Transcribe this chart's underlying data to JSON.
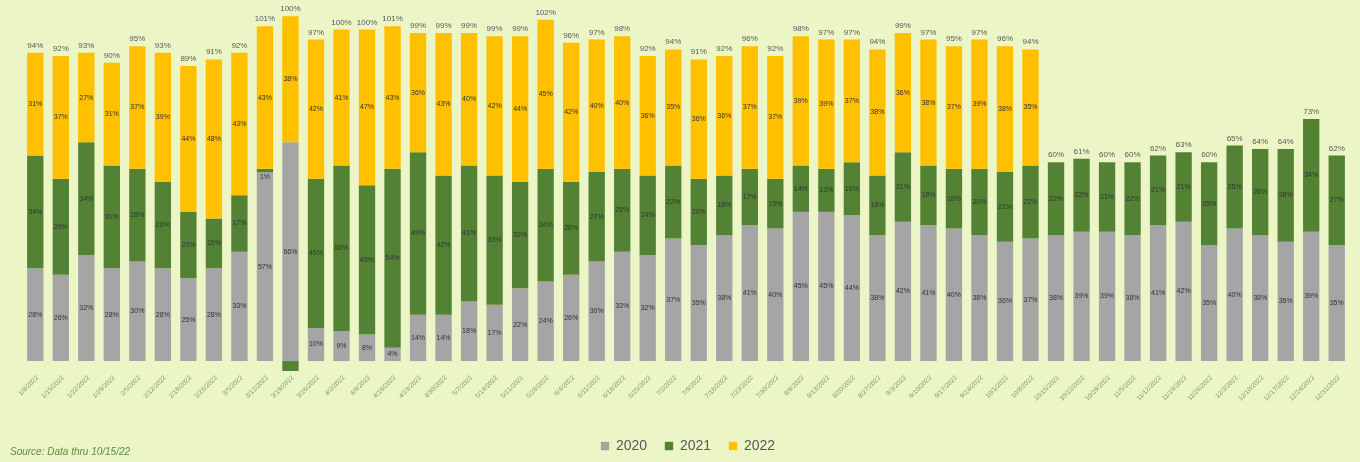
{
  "chart_data": {
    "type": "bar",
    "stacked": true,
    "categories": [
      "1/8/2022",
      "1/15/2022",
      "1/22/2022",
      "1/29/2022",
      "2/5/2022",
      "2/12/2022",
      "2/19/2022",
      "2/26/2022",
      "3/5/2022",
      "3/12/2022",
      "3/19/2022",
      "3/26/2022",
      "4/2/2022",
      "4/9/2022",
      "4/16/2022",
      "4/23/2022",
      "4/30/2022",
      "5/7/2022",
      "5/14/2022",
      "5/21/2022",
      "5/28/2022",
      "6/4/2022",
      "6/11/2022",
      "6/18/2022",
      "6/25/2022",
      "7/2/2022",
      "7/9/2022",
      "7/16/2022",
      "7/23/2022",
      "7/30/2022",
      "8/6/2022",
      "8/13/2022",
      "8/20/2022",
      "8/27/2022",
      "9/3/2022",
      "9/10/2022",
      "9/17/2022",
      "9/24/2022",
      "10/1/2022",
      "10/8/2022",
      "10/15/2022",
      "10/22/2022",
      "10/29/2022",
      "11/5/2022",
      "11/12/2022",
      "11/19/2022",
      "11/26/2022",
      "12/3/2022",
      "12/10/2022",
      "12/17/2022",
      "12/24/2022",
      "12/31/2022"
    ],
    "series": [
      {
        "name": "2020",
        "color": "#a5a5a5",
        "values": [
          28,
          26,
          32,
          28,
          30,
          28,
          25,
          28,
          33,
          57,
          66,
          10,
          9,
          8,
          4,
          14,
          14,
          18,
          17,
          22,
          24,
          26,
          30,
          33,
          32,
          37,
          35,
          38,
          41,
          40,
          45,
          45,
          44,
          38,
          42,
          41,
          40,
          38,
          36,
          37,
          38,
          39,
          39,
          38,
          41,
          42,
          35,
          40,
          38,
          36,
          39,
          35
        ],
        "value_labels": [
          "28%",
          "26%",
          "32%",
          "28%",
          "30%",
          "28%",
          "25%",
          "28%",
          "33%",
          "57%",
          "66%",
          "10%",
          "9%",
          "8%",
          "4%",
          "14%",
          "14%",
          "18%",
          "17%",
          "22%",
          "24%",
          "26%",
          "30%",
          "33%",
          "32%",
          "37%",
          "35%",
          "38%",
          "41%",
          "40%",
          "45%",
          "45%",
          "44%",
          "38%",
          "42%",
          "41%",
          "40%",
          "38%",
          "36%",
          "37%",
          "38%",
          "39%",
          "39%",
          "38%",
          "41%",
          "42%",
          "35%",
          "40%",
          "38%",
          "36%",
          "39%",
          "35%"
        ]
      },
      {
        "name": "2021",
        "color": "#548235",
        "values": [
          34,
          29,
          34,
          31,
          28,
          26,
          20,
          15,
          17,
          1,
          -3,
          45,
          50,
          45,
          54,
          49,
          42,
          41,
          39,
          32,
          34,
          28,
          27,
          25,
          24,
          22,
          20,
          18,
          17,
          15,
          14,
          13,
          16,
          18,
          21,
          18,
          18,
          20,
          21,
          22,
          22,
          22,
          21,
          22,
          21,
          21,
          25,
          25,
          26,
          28,
          34,
          27
        ],
        "value_labels": [
          "34%",
          "29%",
          "34%",
          "31%",
          "28%",
          "26%",
          "20%",
          "15%",
          "17%",
          "1%",
          null,
          "45%",
          "50%",
          "45%",
          "54%",
          "49%",
          "42%",
          "41%",
          "39%",
          "32%",
          "34%",
          "28%",
          "27%",
          "25%",
          "24%",
          "22%",
          "20%",
          "18%",
          "17%",
          "15%",
          "14%",
          "13%",
          "16%",
          "18%",
          "21%",
          "18%",
          "18%",
          "20%",
          "21%",
          "22%",
          "22%",
          "22%",
          "21%",
          "22%",
          "21%",
          "21%",
          "25%",
          "25%",
          "26%",
          "28%",
          "34%",
          "27%"
        ]
      },
      {
        "name": "2022",
        "color": "#ffc000",
        "values": [
          31,
          37,
          27,
          31,
          37,
          39,
          44,
          48,
          43,
          43,
          38,
          42,
          41,
          47,
          43,
          36,
          43,
          40,
          42,
          44,
          45,
          42,
          40,
          40,
          36,
          35,
          36,
          36,
          37,
          37,
          39,
          39,
          37,
          38,
          36,
          38,
          37,
          39,
          38,
          35,
          null,
          null,
          null,
          null,
          null,
          null,
          null,
          null,
          null,
          null,
          null,
          null
        ],
        "value_labels": [
          "31%",
          "37%",
          "27%",
          "31%",
          "37%",
          "39%",
          "44%",
          "48%",
          "43%",
          "43%",
          "38%",
          "42%",
          "41%",
          "47%",
          "43%",
          "36%",
          "43%",
          "40%",
          "42%",
          "44%",
          "45%",
          "42%",
          "40%",
          "40%",
          "36%",
          "35%",
          "36%",
          "36%",
          "37%",
          "37%",
          "39%",
          "39%",
          "37%",
          "38%",
          "36%",
          "38%",
          "37%",
          "39%",
          "38%",
          "35%",
          null,
          null,
          null,
          null,
          null,
          null,
          null,
          null,
          null,
          null,
          null,
          null
        ]
      }
    ],
    "totals": [
      "94%",
      "92%",
      "93%",
      "90%",
      "95%",
      "93%",
      "89%",
      "91%",
      "92%",
      "101%",
      "100%",
      "97%",
      "100%",
      "100%",
      "101%",
      "99%",
      "99%",
      "99%",
      "99%",
      "99%",
      "102%",
      "96%",
      "97%",
      "98%",
      "92%",
      "94%",
      "91%",
      "92%",
      "96%",
      "92%",
      "98%",
      "97%",
      "97%",
      "94%",
      "99%",
      "97%",
      "95%",
      "97%",
      "96%",
      "94%",
      "60%",
      "61%",
      "60%",
      "60%",
      "62%",
      "63%",
      "60%",
      "65%",
      "64%",
      "64%",
      "73%",
      "62%"
    ],
    "ylim": [
      -3,
      105
    ],
    "tick_labels": "x",
    "legend": "bottom",
    "annotations": [
      "Source:  Data thru 10/15/22"
    ]
  }
}
